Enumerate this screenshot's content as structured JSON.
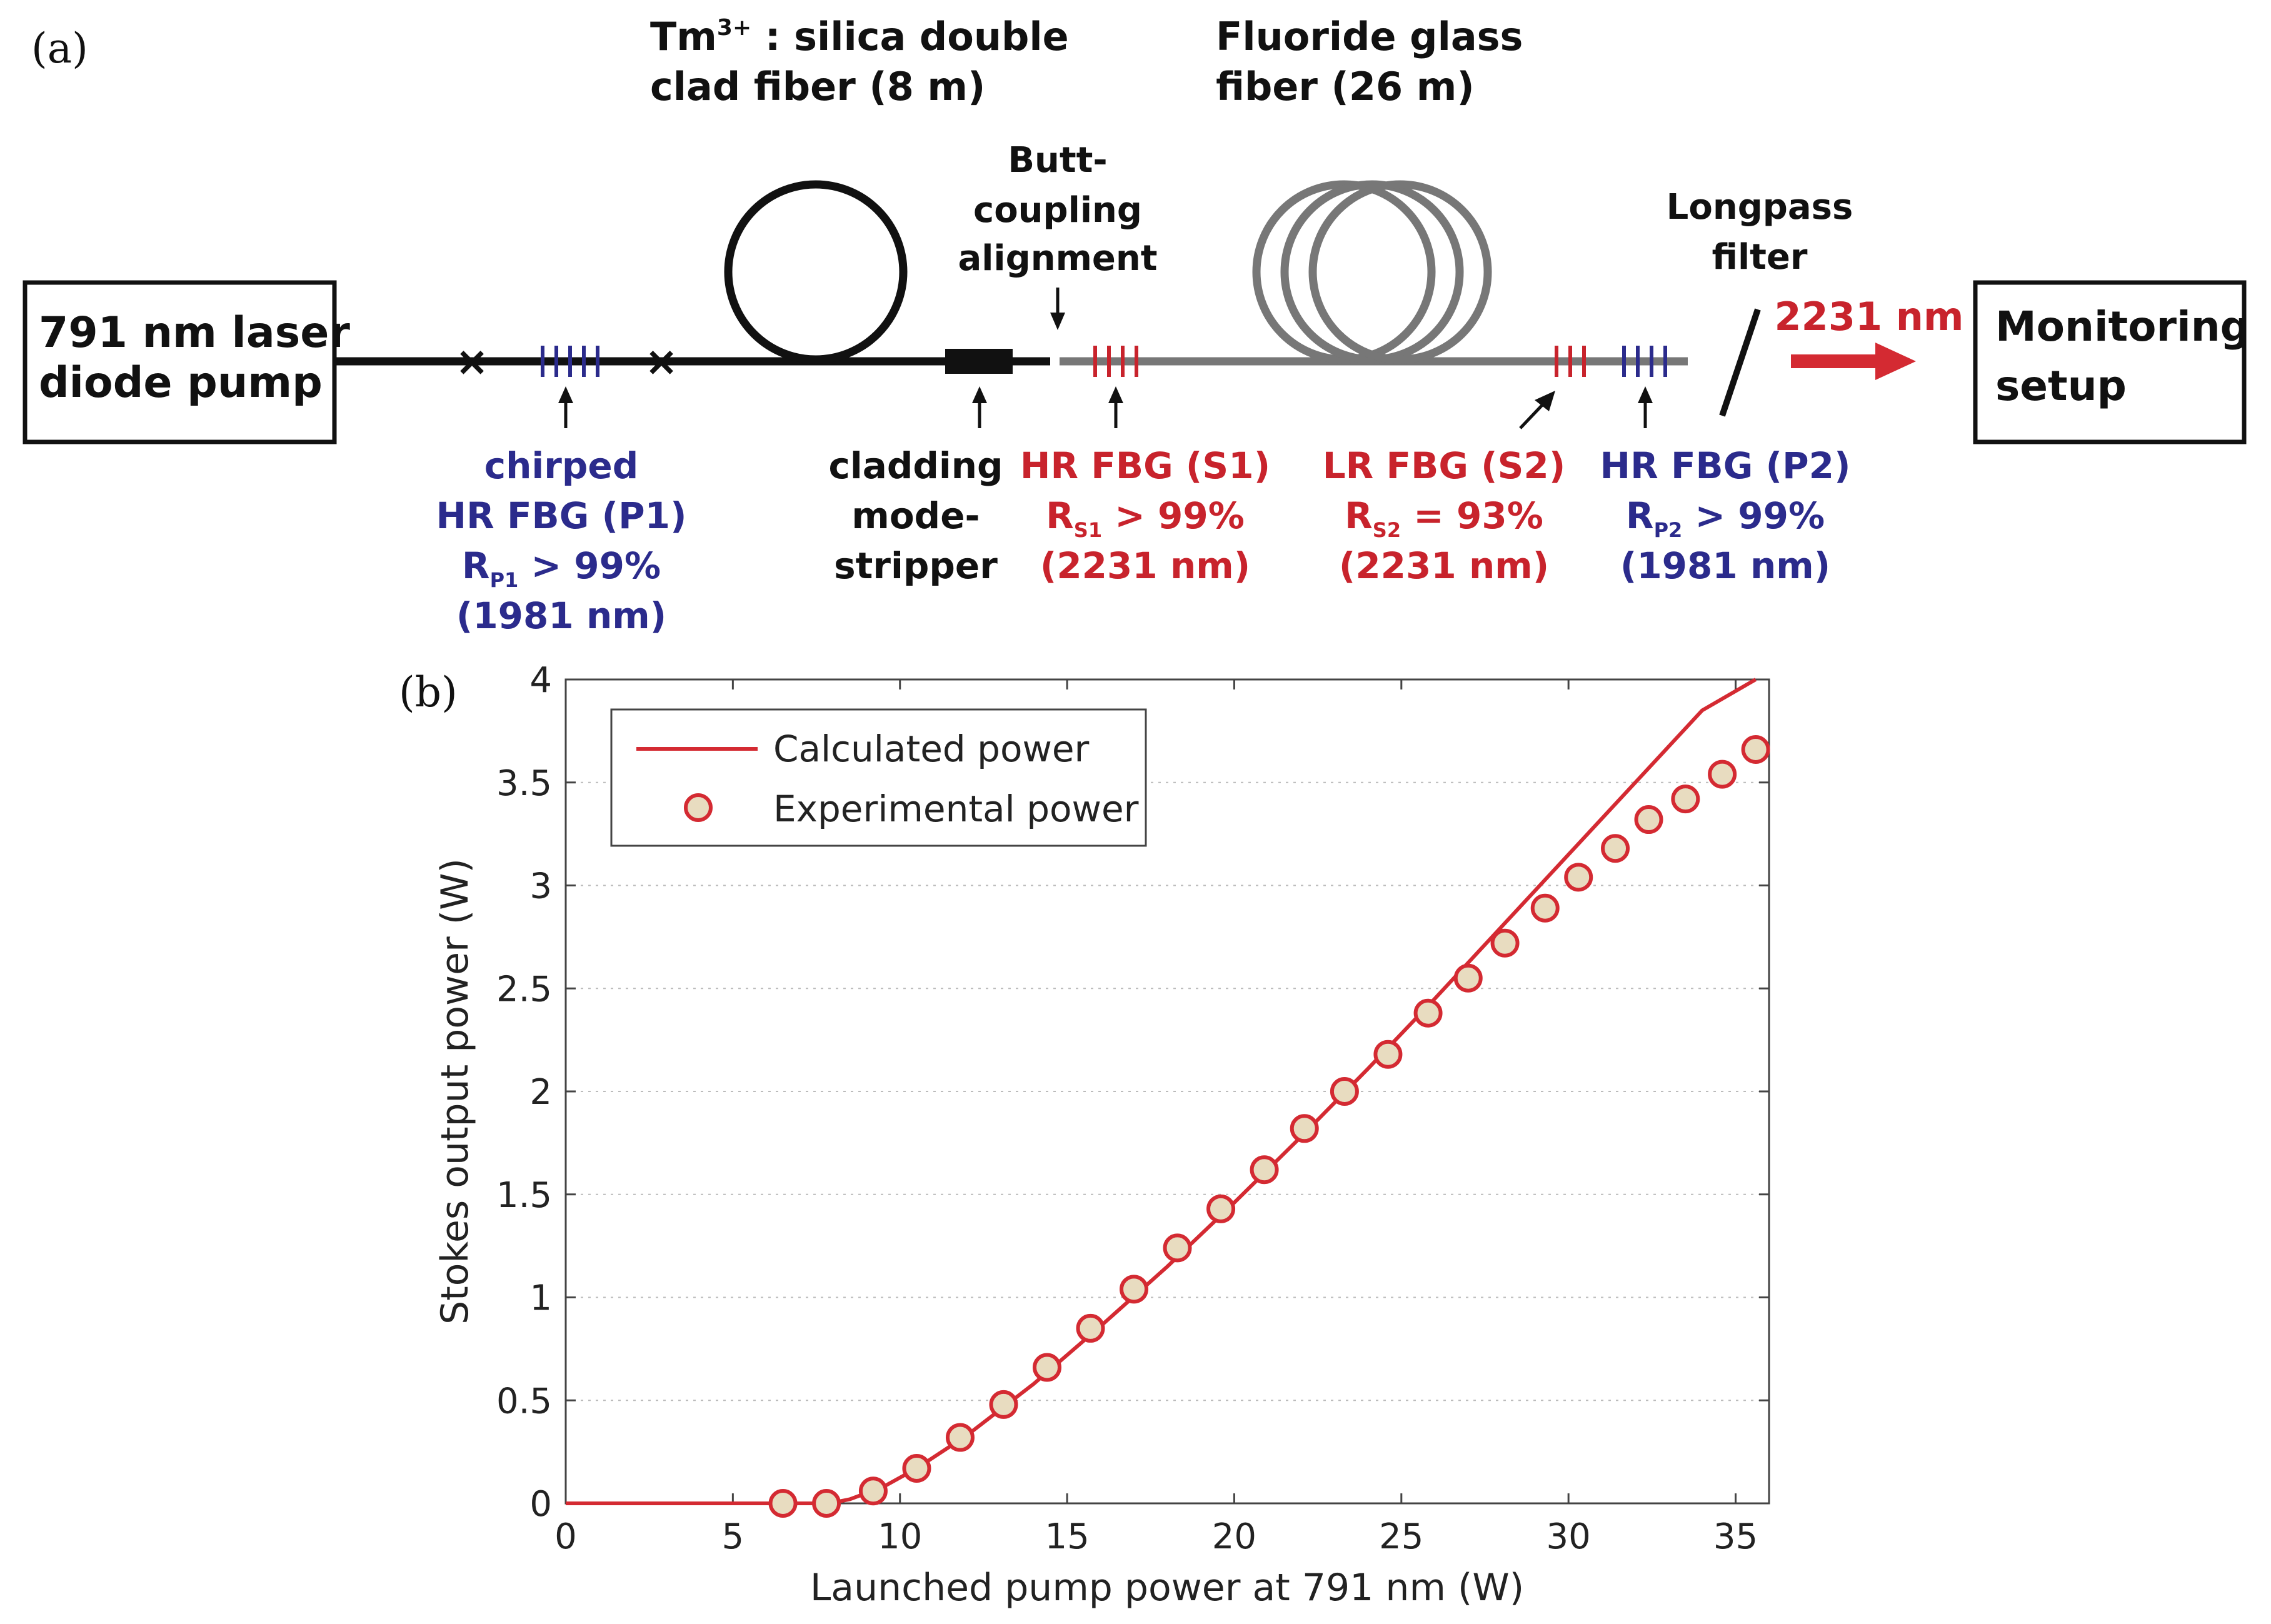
{
  "panel_a": {
    "label": "(a)",
    "pump_box": {
      "line1": "791 nm laser",
      "line2": "diode pump"
    },
    "monitor_box": {
      "line1": "Monitoring",
      "line2": "setup"
    },
    "tm_fiber": {
      "line1_main": "Tm",
      "line1_sup": "3+",
      "line1_rest": " : silica double",
      "line2": "clad fiber (8 m)"
    },
    "fluoride_fiber": {
      "line1": "Fluoride glass",
      "line2": "fiber (26 m)"
    },
    "butt_coupling": {
      "line1": "Butt-",
      "line2": "coupling",
      "line3": "alignment"
    },
    "longpass": {
      "line1": "Longpass",
      "line2": "filter"
    },
    "output_wavelength": "2231 nm",
    "fbg_p1": {
      "line1": "chirped",
      "line2": "HR FBG (P1)",
      "r_main": "R",
      "r_sub": "P1",
      "r_rest": " > 99%",
      "line4": "(1981 nm)"
    },
    "mode_stripper": {
      "line1": "cladding",
      "line2": "mode-",
      "line3": "stripper"
    },
    "fbg_s1": {
      "line1": "HR FBG (S1)",
      "r_main": "R",
      "r_sub": "S1",
      "r_rest": " > 99%",
      "line3": "(2231 nm)"
    },
    "fbg_s2": {
      "line1": "LR FBG (S2)",
      "r_main": "R",
      "r_sub": "S2",
      "r_rest": " = 93%",
      "line3": "(2231 nm)"
    },
    "fbg_p2": {
      "line1": "HR FBG (P2)",
      "r_main": "R",
      "r_sub": "P2",
      "r_rest": " > 99%",
      "line3": "(1981 nm)"
    },
    "colors": {
      "pump_blue": "#2b2b8c",
      "signal_red": "#c8232c",
      "fluoride_gray": "#777777",
      "fiber_black": "#111111"
    }
  },
  "panel_b": {
    "label": "(b)",
    "legend": {
      "line_label": "Calculated power",
      "marker_label": "Experimental power"
    },
    "chart_data": {
      "type": "line",
      "xlabel": "Launched pump power at 791 nm (W)",
      "ylabel": "Stokes output power (W)",
      "xlim": [
        0,
        36
      ],
      "ylim": [
        0,
        4
      ],
      "xticks": [
        0,
        5,
        10,
        15,
        20,
        25,
        30,
        35
      ],
      "yticks": [
        0,
        0.5,
        1,
        1.5,
        2,
        2.5,
        3,
        3.5,
        4
      ],
      "yticklabels": [
        "0",
        "0.5",
        "1",
        "1.5",
        "2",
        "2.5",
        "3",
        "3.5",
        "4"
      ],
      "grid": "dotted horizontal",
      "legend_position": "top-left",
      "series": [
        {
          "name": "Calculated power",
          "kind": "line",
          "color": "#d42a32",
          "x": [
            0,
            6.0,
            7.9,
            8.5,
            9.5,
            10.5,
            12,
            14,
            16,
            18,
            20,
            22,
            24,
            26,
            28,
            30,
            32,
            34,
            35.6
          ],
          "y": [
            0,
            0,
            0,
            0.02,
            0.08,
            0.17,
            0.33,
            0.58,
            0.86,
            1.15,
            1.46,
            1.78,
            2.11,
            2.45,
            2.8,
            3.15,
            3.5,
            3.85,
            4.0
          ]
        },
        {
          "name": "Experimental power",
          "kind": "scatter",
          "marker_face": "#e8dcc0",
          "marker_edge": "#d42a32",
          "x": [
            6.5,
            7.8,
            9.2,
            10.5,
            11.8,
            13.1,
            14.4,
            15.7,
            17.0,
            18.3,
            19.6,
            20.9,
            22.1,
            23.3,
            24.6,
            25.8,
            27.0,
            28.1,
            29.3,
            30.3,
            31.4,
            32.4,
            33.5,
            34.6,
            35.6
          ],
          "y": [
            0,
            0,
            0.06,
            0.17,
            0.32,
            0.48,
            0.66,
            0.85,
            1.04,
            1.24,
            1.43,
            1.62,
            1.82,
            2.0,
            2.18,
            2.38,
            2.55,
            2.72,
            2.89,
            3.04,
            3.18,
            3.32,
            3.42,
            3.54,
            3.66
          ]
        }
      ]
    }
  }
}
